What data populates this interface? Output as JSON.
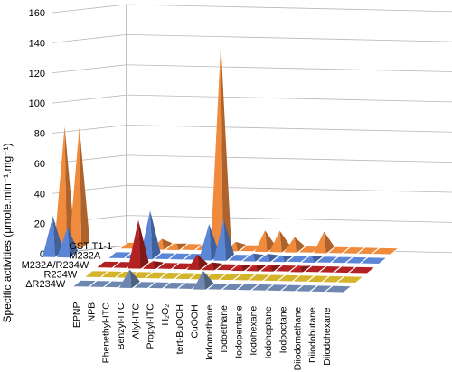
{
  "chart_data": {
    "type": "bar",
    "subtype": "3d-pyramid",
    "ylabel": "Specific activities (µmole.min⁻¹.mg⁻¹)",
    "ylim": [
      0,
      160
    ],
    "yticks": [
      "0",
      "20",
      "40",
      "60",
      "80",
      "100",
      "120",
      "140",
      "160"
    ],
    "grid": true,
    "categories": [
      "EPNP",
      "NPB",
      "Phenethyl-ITC",
      "Benzyl-ITC",
      "Allyl-ITC",
      "Propyl-ITC",
      "H₂O₂",
      "tert-BuOOH",
      "CuOOH",
      "Iodomethane",
      "Iodoethane",
      "Iodopentane",
      "Iodohexane",
      "Iodoheptane",
      "Iodooctane",
      "Diiodomethane",
      "Diiodobutane",
      "Diiodohexane"
    ],
    "series": [
      {
        "name": "GST T1-1",
        "color": "#f08a3c",
        "values": [
          0,
          0,
          5,
          2,
          0,
          0,
          135,
          4,
          0,
          12,
          12,
          8,
          0,
          12,
          0,
          0,
          0,
          0
        ],
        "extra_cdnb_like": [
          78,
          78
        ]
      },
      {
        "name": "M232A",
        "color": "#5b86d6",
        "values": [
          0,
          0,
          30,
          0,
          0,
          0,
          22,
          25,
          0,
          3,
          3,
          2,
          0,
          2,
          0,
          0,
          0,
          0
        ],
        "extra_cdnb_like": [
          25,
          18
        ]
      },
      {
        "name": "M232A/R234W",
        "color": "#b22222",
        "values": [
          0,
          0,
          30,
          3,
          0,
          0,
          8,
          3,
          0,
          1,
          1,
          1,
          0,
          1,
          0,
          0,
          0,
          0
        ]
      },
      {
        "name": "R234W",
        "color": "#d4b42a",
        "values": [
          0,
          0,
          0,
          0,
          0,
          0,
          0,
          0,
          0,
          0,
          0,
          0,
          0,
          0,
          0,
          0,
          0,
          0
        ]
      },
      {
        "name": "ΔR234W",
        "color": "#6d87b0",
        "values": [
          0,
          0,
          0,
          10,
          0,
          0,
          0,
          0,
          10,
          0,
          0,
          0,
          0,
          0,
          0,
          0,
          0,
          0
        ]
      }
    ]
  }
}
